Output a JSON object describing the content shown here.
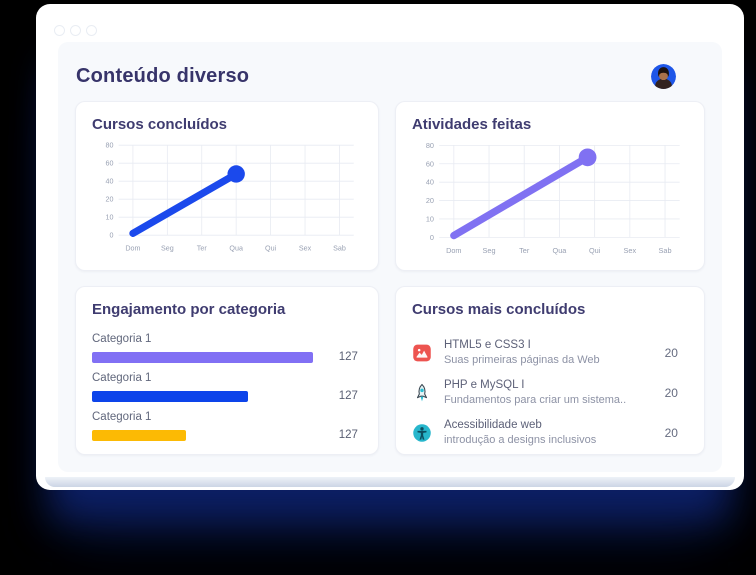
{
  "window": {
    "controls": [
      "window-dot",
      "window-dot",
      "window-dot"
    ]
  },
  "header": {
    "title": "Conteúdo diverso"
  },
  "colors": {
    "line_blue": "#1b49ec",
    "line_purple": "#8071f2",
    "bar_purple": "#8170f4",
    "bar_blue": "#0d44ea",
    "bar_yellow": "#fcba04",
    "grid_line": "#e8ebf2",
    "axis_text": "#99a1b3",
    "shadow_navy": "#0d2066"
  },
  "cards": {
    "cursos_concluidos": {
      "title": "Cursos concluídos"
    },
    "atividades_feitas": {
      "title": "Atividades feitas"
    },
    "engajamento": {
      "title": "Engajamento por categoria",
      "rows": [
        {
          "label": "Categoria 1",
          "value": "127",
          "color": "#8170f4",
          "pct": 96
        },
        {
          "label": "Categoria 1",
          "value": "127",
          "color": "#0d44ea",
          "pct": 68
        },
        {
          "label": "Categoria 1",
          "value": "127",
          "color": "#fcba04",
          "pct": 41
        }
      ]
    },
    "cursos_mais": {
      "title": "Cursos mais concluídos",
      "items": [
        {
          "icon": "book-icon",
          "title": "HTML5 e CSS3 I",
          "subtitle": "Suas primeiras páginas da Web",
          "value": "20"
        },
        {
          "icon": "rocket-icon",
          "title": "PHP e MySQL I",
          "subtitle": "Fundamentos para criar um sistema..",
          "value": "20"
        },
        {
          "icon": "accessibility-icon",
          "title": "Acessibilidade web",
          "subtitle": "introdução a designs inclusivos",
          "value": "20"
        }
      ]
    }
  },
  "chart_data": [
    {
      "type": "line",
      "title": "Cursos concluídos",
      "categories": [
        "Dom",
        "Seg",
        "Ter",
        "Qua",
        "Qui",
        "Sex",
        "Sab"
      ],
      "y_ticks": [
        0,
        10,
        20,
        40,
        60,
        80
      ],
      "points": [
        {
          "x": 0,
          "y": 1
        },
        {
          "x": 3,
          "y": 48
        }
      ],
      "color": "#1b49ec",
      "end_dot": true,
      "grid": true,
      "legend": "none"
    },
    {
      "type": "line",
      "title": "Atividades feitas",
      "categories": [
        "Dom",
        "Seg",
        "Ter",
        "Qua",
        "Qui",
        "Sex",
        "Sab"
      ],
      "y_ticks": [
        0,
        10,
        20,
        40,
        60,
        80
      ],
      "points": [
        {
          "x": 0,
          "y": 1
        },
        {
          "x": 3.8,
          "y": 67
        }
      ],
      "color": "#8071f2",
      "end_dot": true,
      "grid": true,
      "legend": "none"
    },
    {
      "type": "bar",
      "title": "Engajamento por categoria",
      "orientation": "horizontal",
      "categories": [
        "Categoria 1",
        "Categoria 1",
        "Categoria 1"
      ],
      "values": [
        127,
        127,
        127
      ],
      "bar_lengths_pct": [
        96,
        68,
        41
      ],
      "colors": [
        "#8170f4",
        "#0d44ea",
        "#fcba04"
      ]
    }
  ]
}
